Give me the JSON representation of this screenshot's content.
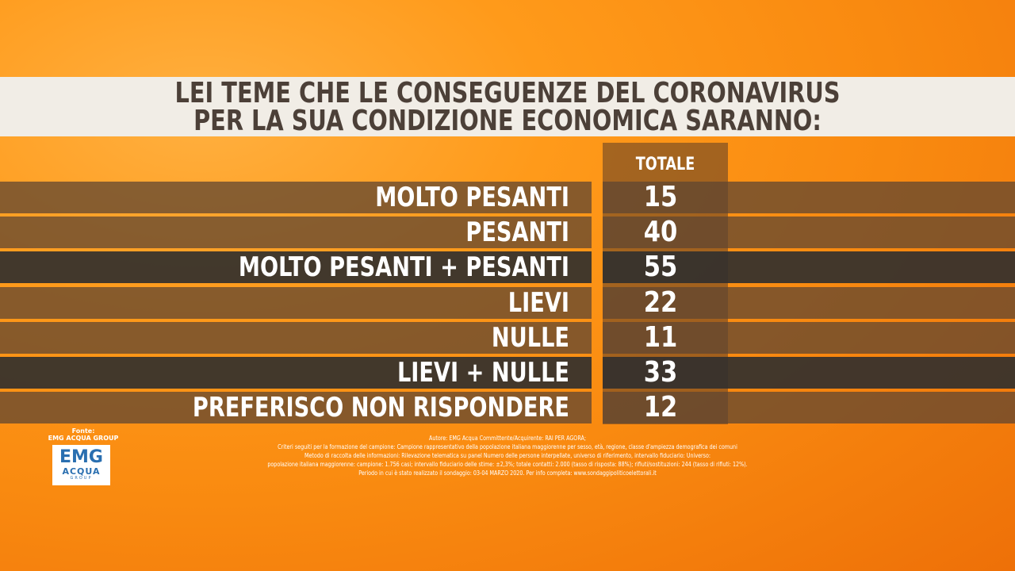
{
  "title": [
    "LEI TEME CHE LE CONSEGUENZE DEL CORONAVIRUS",
    "PER LA SUA CONDIZIONE ECONOMICA SARANNO:"
  ],
  "table": {
    "header": "TOTALE",
    "rows": [
      {
        "label": "MOLTO PESANTI",
        "value": 15
      },
      {
        "label": "PESANTI",
        "value": 40
      },
      {
        "label": "MOLTO PESANTI + PESANTI",
        "value": 55
      },
      {
        "label": "LIEVI",
        "value": 22
      },
      {
        "label": "NULLE",
        "value": 11
      },
      {
        "label": "LIEVI + NULLE",
        "value": 33
      },
      {
        "label": "PREFERISCO NON RISPONDERE",
        "value": 12
      }
    ]
  },
  "source": {
    "label": "Fonte:",
    "name": "EMG ACQUA GROUP"
  },
  "logo": {
    "main": "EMG",
    "sub": "ACQUA",
    "group": "GROUP"
  },
  "footnotes": [
    "Autore: EMG Acqua Committente/Acquirente: RAI PER AGORÀ;",
    "Criteri seguiti per la formazione del campione: Campione rappresentativo della popolazione italiana maggiorenne per sesso, età, regione, classe d'ampiezza demografica dei comuni",
    "Metodo di raccolta delle informazioni: Rilevazione telematica su panel Numero delle persone interpellate, universo di riferimento, intervallo fiduciario: Universo:",
    "popolazione italiana maggiorenne: campione: 1.756 casi; intervallo fiduciario delle stime: ±2,3%; totale contatti: 2.000 (tasso di risposta: 88%); rifiuti/sostituzioni: 244 (tasso di rifiuti: 12%).",
    "Periodo in cui è stato realizzato il sondaggio: 03-04 MARZO 2020. Per info completa: www.sondaggipoliticoelettorali.it"
  ]
}
